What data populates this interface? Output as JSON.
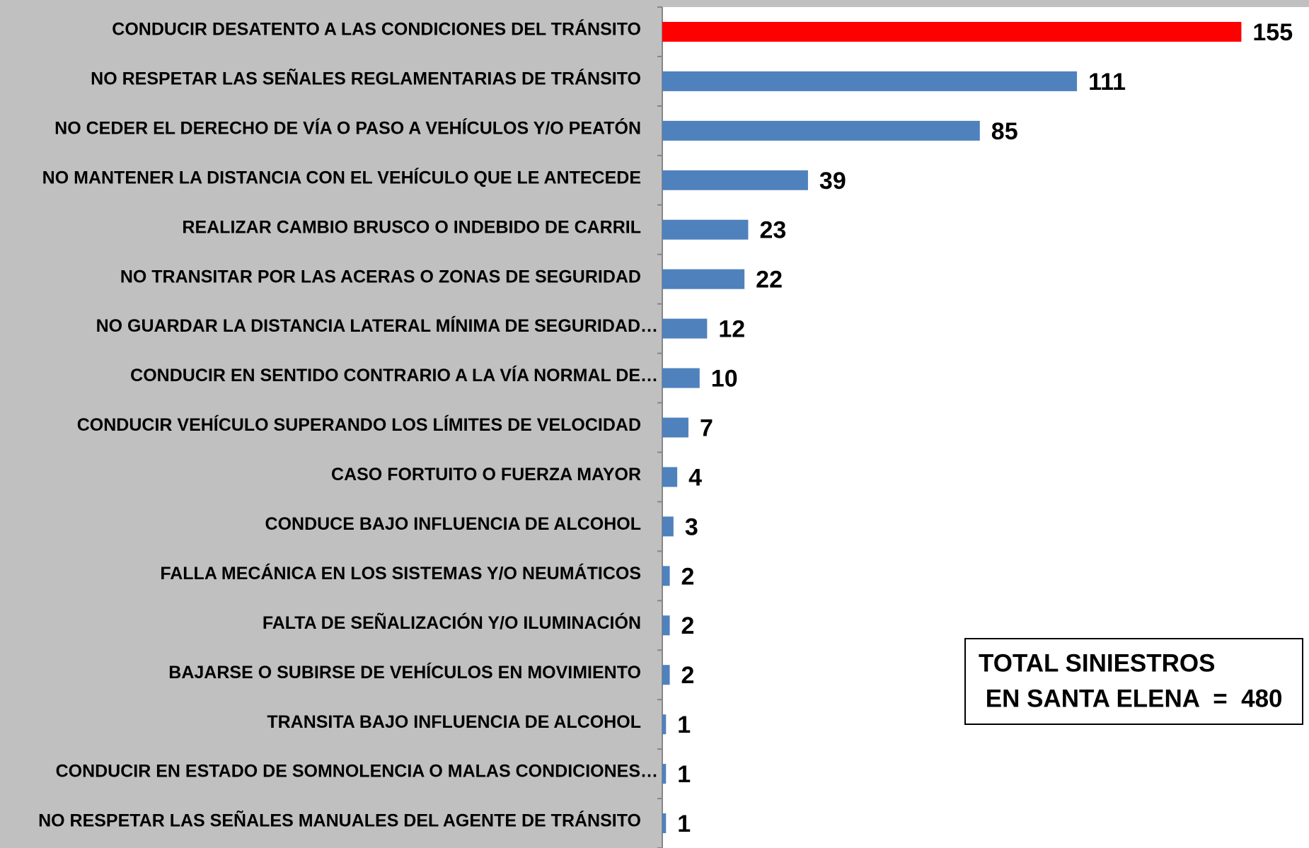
{
  "chart_data": {
    "type": "bar",
    "orientation": "horizontal",
    "categories": [
      "CONDUCIR DESATENTO A LAS CONDICIONES DEL TRÁNSITO",
      "NO RESPETAR LAS SEÑALES REGLAMENTARIAS DE TRÁNSITO",
      "NO CEDER EL DERECHO DE VÍA O PASO A VEHÍCULOS Y/O PEATÓN",
      "NO MANTENER LA DISTANCIA CON EL VEHÍCULO QUE LE ANTECEDE",
      "REALIZAR CAMBIO BRUSCO O INDEBIDO DE CARRIL",
      "NO TRANSITAR POR LAS ACERAS O ZONAS DE SEGURIDAD",
      "NO GUARDAR LA DISTANCIA LATERAL MÍNIMA DE SEGURIDAD…",
      "CONDUCIR EN SENTIDO CONTRARIO A LA VÍA NORMAL DE…",
      "CONDUCIR VEHÍCULO SUPERANDO LOS LÍMITES DE VELOCIDAD",
      "CASO FORTUITO O FUERZA MAYOR",
      "CONDUCE BAJO INFLUENCIA DE ALCOHOL",
      "FALLA MECÁNICA EN LOS SISTEMAS Y/O NEUMÁTICOS",
      "FALTA DE SEÑALIZACIÓN Y/O ILUMINACIÓN",
      "BAJARSE O SUBIRSE DE VEHÍCULOS EN MOVIMIENTO",
      "TRANSITA BAJO INFLUENCIA DE ALCOHOL",
      "CONDUCIR EN ESTADO DE SOMNOLENCIA O MALAS CONDICIONES…",
      "NO RESPETAR LAS SEÑALES MANUALES DEL AGENTE DE TRÁNSITO"
    ],
    "values": [
      155,
      111,
      85,
      39,
      23,
      22,
      12,
      10,
      7,
      4,
      3,
      2,
      2,
      2,
      1,
      1,
      1
    ],
    "colors": [
      "#ff0000",
      "#4f81bd",
      "#4f81bd",
      "#4f81bd",
      "#4f81bd",
      "#4f81bd",
      "#4f81bd",
      "#4f81bd",
      "#4f81bd",
      "#4f81bd",
      "#4f81bd",
      "#4f81bd",
      "#4f81bd",
      "#4f81bd",
      "#4f81bd",
      "#4f81bd",
      "#4f81bd"
    ],
    "xlim": [
      0,
      175
    ],
    "annotation": [
      "TOTAL SINIESTROS",
      " EN SANTA ELENA  =  480"
    ]
  }
}
